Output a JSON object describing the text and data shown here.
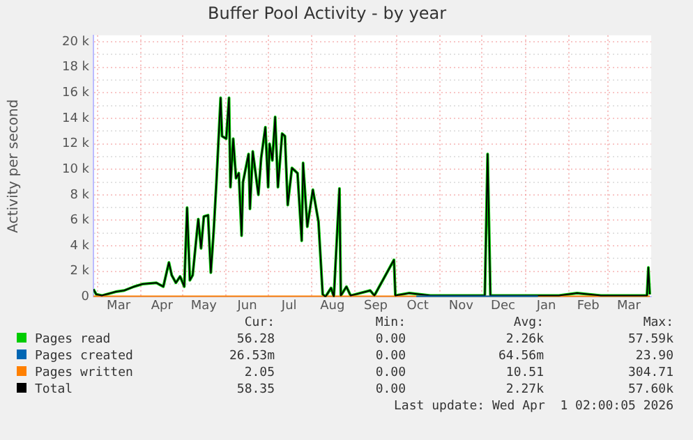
{
  "chart_data": {
    "type": "line",
    "title": "Buffer Pool Activity - by year",
    "ylabel": "Activity per second",
    "xlim": [
      "2025-02-26",
      "2026-04-01"
    ],
    "xticks": [
      {
        "value": "2025-03-01",
        "label": null
      },
      {
        "value": "2025-03-16",
        "label": "Mar"
      },
      {
        "value": "2025-04-01",
        "label": null
      },
      {
        "value": "2025-04-16",
        "label": "Apr"
      },
      {
        "value": "2025-05-01",
        "label": null
      },
      {
        "value": "2025-05-16",
        "label": "May"
      },
      {
        "value": "2025-06-01",
        "label": null
      },
      {
        "value": "2025-06-16",
        "label": "Jun"
      },
      {
        "value": "2025-07-01",
        "label": null
      },
      {
        "value": "2025-07-16",
        "label": "Jul"
      },
      {
        "value": "2025-08-01",
        "label": null
      },
      {
        "value": "2025-08-16",
        "label": "Aug"
      },
      {
        "value": "2025-09-01",
        "label": null
      },
      {
        "value": "2025-09-16",
        "label": "Sep"
      },
      {
        "value": "2025-10-01",
        "label": null
      },
      {
        "value": "2025-10-16",
        "label": "Oct"
      },
      {
        "value": "2025-11-01",
        "label": null
      },
      {
        "value": "2025-11-16",
        "label": "Nov"
      },
      {
        "value": "2025-12-01",
        "label": null
      },
      {
        "value": "2025-12-16",
        "label": "Dec"
      },
      {
        "value": "2026-01-01",
        "label": null
      },
      {
        "value": "2026-01-16",
        "label": "Jan"
      },
      {
        "value": "2026-02-01",
        "label": null
      },
      {
        "value": "2026-02-15",
        "label": "Feb"
      },
      {
        "value": "2026-03-01",
        "label": null
      },
      {
        "value": "2026-03-16",
        "label": "Mar"
      }
    ],
    "ylim": [
      0,
      20500
    ],
    "yticks": [
      0,
      {
        "value": 1000,
        "label": null
      },
      {
        "value": 2000,
        "label": "2 k"
      },
      {
        "value": 3000,
        "label": null
      },
      {
        "value": 4000,
        "label": "4 k"
      },
      {
        "value": 5000,
        "label": null
      },
      {
        "value": 6000,
        "label": "6 k"
      },
      {
        "value": 7000,
        "label": null
      },
      {
        "value": 8000,
        "label": "8 k"
      },
      {
        "value": 9000,
        "label": null
      },
      {
        "value": 10000,
        "label": "10 k"
      },
      {
        "value": 11000,
        "label": null
      },
      {
        "value": 12000,
        "label": "12 k"
      },
      {
        "value": 13000,
        "label": null
      },
      {
        "value": 14000,
        "label": "14 k"
      },
      {
        "value": 15000,
        "label": null
      },
      {
        "value": 16000,
        "label": "16 k"
      },
      {
        "value": 17000,
        "label": null
      },
      {
        "value": 18000,
        "label": "18 k"
      },
      {
        "value": 19000,
        "label": null
      },
      {
        "value": 20000,
        "label": "20 k"
      }
    ],
    "grid": true,
    "legend": "bottom",
    "marker": "none",
    "x": [
      "2025-02-26",
      "2025-02-28",
      "2025-03-04",
      "2025-03-14",
      "2025-03-20",
      "2025-03-27",
      "2025-04-02",
      "2025-04-12",
      "2025-04-17",
      "2025-04-21",
      "2025-04-23",
      "2025-04-26",
      "2025-04-29",
      "2025-05-02",
      "2025-05-04",
      "2025-05-06",
      "2025-05-08",
      "2025-05-12",
      "2025-05-14",
      "2025-05-16",
      "2025-05-19",
      "2025-05-21",
      "2025-05-23",
      "2025-05-25",
      "2025-05-28",
      "2025-05-29",
      "2025-06-01",
      "2025-06-03",
      "2025-06-04",
      "2025-06-06",
      "2025-06-08",
      "2025-06-10",
      "2025-06-12",
      "2025-06-13",
      "2025-06-17",
      "2025-06-18",
      "2025-06-20",
      "2025-06-24",
      "2025-06-26",
      "2025-06-29",
      "2025-07-01",
      "2025-07-02",
      "2025-07-04",
      "2025-07-06",
      "2025-07-08",
      "2025-07-11",
      "2025-07-13",
      "2025-07-15",
      "2025-07-18",
      "2025-07-22",
      "2025-07-25",
      "2025-07-26",
      "2025-07-29",
      "2025-08-02",
      "2025-08-06",
      "2025-08-09",
      "2025-08-11",
      "2025-08-15",
      "2025-08-17",
      "2025-08-21",
      "2025-08-22",
      "2025-08-26",
      "2025-08-29",
      "2025-09-12",
      "2025-09-15",
      "2025-09-29",
      "2025-09-30",
      "2025-10-10",
      "2025-10-25",
      "2025-11-17",
      "2025-12-03",
      "2025-12-05",
      "2025-12-07",
      "2025-12-26",
      "2026-01-25",
      "2026-02-07",
      "2026-02-24",
      "2026-03-16",
      "2026-03-29",
      "2026-03-30",
      "2026-03-31"
    ],
    "series": [
      {
        "name": "Pages read",
        "color": "#00cc00",
        "values": [
          600,
          200,
          100,
          400,
          500,
          800,
          1000,
          1100,
          800,
          2700,
          1700,
          1100,
          1600,
          800,
          7000,
          1300,
          1700,
          6100,
          3800,
          6300,
          6400,
          1900,
          5100,
          9000,
          15600,
          12600,
          12400,
          15600,
          8600,
          12400,
          9300,
          9700,
          4800,
          9000,
          11200,
          6900,
          11400,
          8000,
          10900,
          13300,
          8600,
          12000,
          10700,
          14100,
          8600,
          12800,
          12600,
          7200,
          10100,
          9700,
          4400,
          10500,
          5500,
          8400,
          5900,
          200,
          0,
          700,
          0,
          8500,
          100,
          800,
          100,
          500,
          100,
          2900,
          100,
          300,
          100,
          100,
          100,
          11200,
          100,
          100,
          100,
          300,
          100,
          100,
          100,
          2300,
          200
        ]
      },
      {
        "name": "Pages created",
        "color": "#0066b3",
        "x": [
          "2025-10-15",
          "2026-01-10"
        ],
        "values": [
          0,
          0
        ]
      },
      {
        "name": "Pages written",
        "color": "#ff8000",
        "x": [
          "2025-02-26",
          "2026-03-31"
        ],
        "values": [
          0,
          0
        ]
      },
      {
        "name": "Total",
        "color": "#000000",
        "values": [
          600,
          200,
          100,
          400,
          500,
          800,
          1000,
          1100,
          800,
          2700,
          1700,
          1100,
          1600,
          800,
          7000,
          1300,
          1700,
          6100,
          3800,
          6300,
          6400,
          1900,
          5100,
          9000,
          15600,
          12600,
          12400,
          15600,
          8600,
          12400,
          9300,
          9700,
          4800,
          9000,
          11200,
          6900,
          11400,
          8000,
          10900,
          13300,
          8600,
          12000,
          10700,
          14100,
          8600,
          12800,
          12600,
          7200,
          10100,
          9700,
          4400,
          10500,
          5500,
          8400,
          5900,
          200,
          0,
          700,
          0,
          8500,
          100,
          800,
          100,
          500,
          100,
          2900,
          100,
          300,
          100,
          100,
          100,
          11200,
          100,
          100,
          100,
          300,
          100,
          100,
          100,
          2300,
          200
        ]
      }
    ],
    "annotations": [
      "Cur:",
      "Min:",
      "Avg:",
      "Max:",
      "56.28",
      "0.00",
      "2.26k",
      "57.59k",
      "26.53m",
      "0.00",
      "64.56m",
      "23.90",
      "2.05",
      "0.00",
      "10.51",
      "304.71",
      "58.35",
      "0.00",
      "2.27k",
      "57.60k",
      "Last update: Wed Apr  1 02:00:05 2026"
    ]
  }
}
